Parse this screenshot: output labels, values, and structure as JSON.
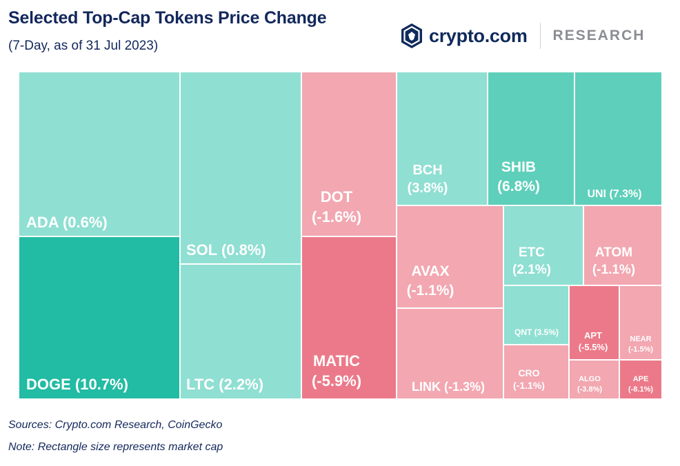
{
  "header": {
    "title": "Selected Top-Cap Tokens Price Change",
    "subtitle": "(7-Day, as of 31 Jul 2023)"
  },
  "brand": {
    "name": "crypto.com",
    "division": "RESEARCH",
    "logo_icon": "crypto-com-shield-icon",
    "colors": {
      "navy": "#0f2a5c",
      "gray": "#8a8d93"
    }
  },
  "footer": {
    "sources": "Sources: Crypto.com Research, CoinGecko",
    "note": "Note: Rectangle size represents market cap"
  },
  "colors": {
    "up_light": "#8fdfd2",
    "up_mid": "#5ecfba",
    "up_strong": "#22bba3",
    "down_light": "#f2a7b1",
    "down_strong": "#ec7989"
  },
  "chart_data": {
    "type": "treemap",
    "size_encoding": "market cap",
    "tiles": [
      {
        "token": "ADA",
        "label": "ADA (0.6%)",
        "change_pct": 0.6,
        "color": "#8fdfd2"
      },
      {
        "token": "DOGE",
        "label": "DOGE (10.7%)",
        "change_pct": 10.7,
        "color": "#22bba3"
      },
      {
        "token": "SOL",
        "label": "SOL (0.8%)",
        "change_pct": 0.8,
        "color": "#8fdfd2"
      },
      {
        "token": "LTC",
        "label": "LTC (2.2%)",
        "change_pct": 2.2,
        "color": "#8fdfd2"
      },
      {
        "token": "DOT",
        "label": "DOT (-1.6%)",
        "change_pct": -1.6,
        "color": "#f2a7b1"
      },
      {
        "token": "MATIC",
        "label": "MATIC (-5.9%)",
        "change_pct": -5.9,
        "color": "#ec7989"
      },
      {
        "token": "BCH",
        "label": "BCH (3.8%)",
        "change_pct": 3.8,
        "color": "#8fdfd2"
      },
      {
        "token": "SHIB",
        "label": "SHIB (6.8%)",
        "change_pct": 6.8,
        "color": "#5ecfba"
      },
      {
        "token": "UNI",
        "label": "UNI (7.3%)",
        "change_pct": 7.3,
        "color": "#5ecfba"
      },
      {
        "token": "AVAX",
        "label": "AVAX (-1.1%)",
        "change_pct": -1.1,
        "color": "#f2a7b1"
      },
      {
        "token": "LINK",
        "label": "LINK (-1.3%)",
        "change_pct": -1.3,
        "color": "#f2a7b1"
      },
      {
        "token": "ETC",
        "label": "ETC (2.1%)",
        "change_pct": 2.1,
        "color": "#8fdfd2"
      },
      {
        "token": "ATOM",
        "label": "ATOM (-1.1%)",
        "change_pct": -1.1,
        "color": "#f2a7b1"
      },
      {
        "token": "QNT",
        "label": "QNT (3.5%)",
        "change_pct": 3.5,
        "color": "#8fdfd2"
      },
      {
        "token": "CRO",
        "label": "CRO (-1.1%)",
        "change_pct": -1.1,
        "color": "#f2a7b1"
      },
      {
        "token": "APT",
        "label": "APT (-5.5%)",
        "change_pct": -5.5,
        "color": "#ec7989"
      },
      {
        "token": "NEAR",
        "label": "NEAR (-1.5%)",
        "change_pct": -1.5,
        "color": "#f2a7b1"
      },
      {
        "token": "ALGO",
        "label": "ALGO (-3.8%)",
        "change_pct": -3.8,
        "color": "#f2a7b1"
      },
      {
        "token": "APE",
        "label": "APE (-8.1%)",
        "change_pct": -8.1,
        "color": "#ec7989"
      }
    ]
  }
}
